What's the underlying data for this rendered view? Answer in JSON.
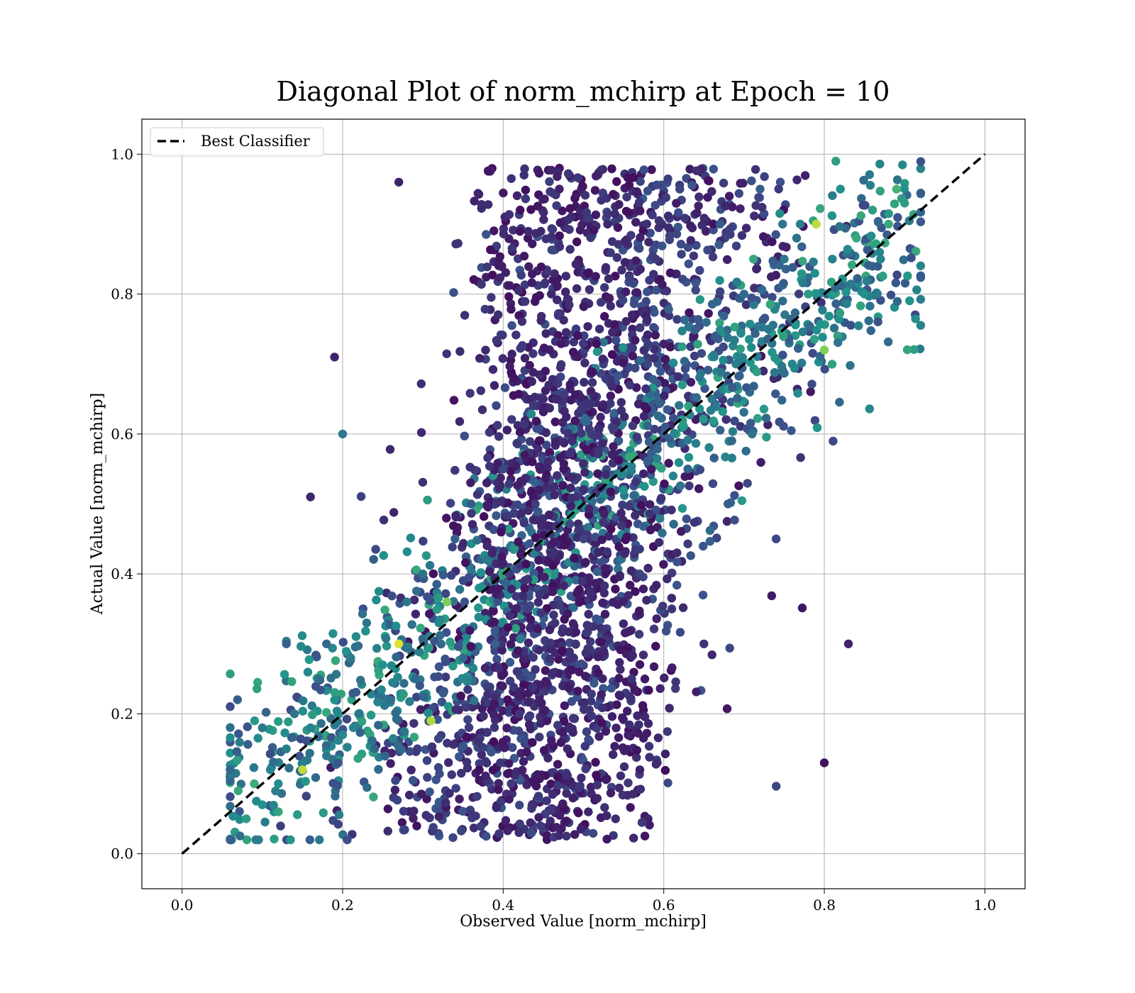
{
  "chart_data": {
    "type": "scatter",
    "title": "Diagonal Plot of norm_mchirp at Epoch = 10",
    "xlabel": "Observed Value [norm_mchirp]",
    "ylabel": "Actual Value [norm_mchirp]",
    "xlim": [
      -0.05,
      1.05
    ],
    "ylim": [
      -0.05,
      1.05
    ],
    "xticks": [
      0.0,
      0.2,
      0.4,
      0.6,
      0.8,
      1.0
    ],
    "yticks": [
      0.0,
      0.2,
      0.4,
      0.6,
      0.8,
      1.0
    ],
    "xtick_labels": [
      "0.0",
      "0.2",
      "0.4",
      "0.6",
      "0.8",
      "1.0"
    ],
    "ytick_labels": [
      "0.0",
      "0.2",
      "0.4",
      "0.6",
      "0.8",
      "1.0"
    ],
    "grid": true,
    "legend": {
      "placement": "top-left",
      "entries": [
        "Best Classifier"
      ]
    },
    "colormap": "viridis",
    "colors": {
      "viridis_low": "#440154",
      "viridis_mid": "#21918c",
      "viridis_high": "#fde725",
      "reference_line": "#000000",
      "grid": "#b0b0b0"
    },
    "reference_line": {
      "name": "Best Classifier",
      "style": "dashed",
      "x": [
        0.0,
        1.0
      ],
      "y": [
        0.0,
        1.0
      ]
    },
    "series": [
      {
        "marker": "circle",
        "points": [
          [
            0.07,
            0.09,
            0.6
          ],
          [
            0.08,
            0.05,
            0.55
          ],
          [
            0.09,
            0.1,
            0.62
          ],
          [
            0.1,
            0.07,
            0.5
          ],
          [
            0.11,
            0.12,
            0.45
          ],
          [
            0.12,
            0.06,
            0.58
          ],
          [
            0.1,
            0.18,
            0.4
          ],
          [
            0.13,
            0.15,
            0.42
          ],
          [
            0.14,
            0.2,
            0.38
          ],
          [
            0.12,
            0.1,
            0.48
          ],
          [
            0.15,
            0.12,
            0.9
          ],
          [
            0.16,
            0.18,
            0.44
          ],
          [
            0.17,
            0.25,
            0.36
          ],
          [
            0.18,
            0.14,
            0.4
          ],
          [
            0.19,
            0.22,
            0.5
          ],
          [
            0.2,
            0.17,
            0.46
          ],
          [
            0.18,
            0.3,
            0.34
          ],
          [
            0.21,
            0.28,
            0.42
          ],
          [
            0.22,
            0.2,
            0.4
          ],
          [
            0.23,
            0.33,
            0.38
          ],
          [
            0.24,
            0.15,
            0.33
          ],
          [
            0.25,
            0.27,
            0.5
          ],
          [
            0.26,
            0.22,
            0.36
          ],
          [
            0.27,
            0.3,
            0.95
          ],
          [
            0.28,
            0.36,
            0.4
          ],
          [
            0.29,
            0.25,
            0.35
          ],
          [
            0.3,
            0.4,
            0.38
          ],
          [
            0.31,
            0.19,
            0.88
          ],
          [
            0.32,
            0.33,
            0.45
          ],
          [
            0.33,
            0.36,
            0.8
          ],
          [
            0.34,
            0.45,
            0.3
          ],
          [
            0.35,
            0.28,
            0.34
          ],
          [
            0.36,
            0.5,
            0.28
          ],
          [
            0.37,
            0.38,
            0.5
          ],
          [
            0.38,
            0.42,
            0.4
          ],
          [
            0.39,
            0.3,
            0.3
          ],
          [
            0.4,
            0.55,
            0.22
          ],
          [
            0.41,
            0.1,
            0.18
          ],
          [
            0.42,
            0.2,
            0.16
          ],
          [
            0.43,
            0.35,
            0.2
          ],
          [
            0.44,
            0.5,
            0.18
          ],
          [
            0.45,
            0.65,
            0.14
          ],
          [
            0.46,
            0.8,
            0.12
          ],
          [
            0.47,
            0.95,
            0.1
          ],
          [
            0.48,
            0.15,
            0.12
          ],
          [
            0.49,
            0.3,
            0.16
          ],
          [
            0.5,
            0.45,
            0.2
          ],
          [
            0.51,
            0.6,
            0.18
          ],
          [
            0.52,
            0.75,
            0.14
          ],
          [
            0.53,
            0.9,
            0.12
          ],
          [
            0.54,
            0.05,
            0.14
          ],
          [
            0.55,
            0.52,
            0.5
          ],
          [
            0.56,
            0.25,
            0.16
          ],
          [
            0.57,
            0.4,
            0.2
          ],
          [
            0.58,
            0.7,
            0.22
          ],
          [
            0.59,
            0.85,
            0.18
          ],
          [
            0.6,
            0.6,
            0.3
          ],
          [
            0.61,
            0.35,
            0.16
          ],
          [
            0.62,
            0.95,
            0.2
          ],
          [
            0.63,
            0.55,
            0.32
          ],
          [
            0.64,
            0.75,
            0.3
          ],
          [
            0.65,
            0.3,
            0.15
          ],
          [
            0.66,
            0.65,
            0.4
          ],
          [
            0.67,
            0.9,
            0.28
          ],
          [
            0.68,
            0.5,
            0.3
          ],
          [
            0.69,
            0.7,
            0.42
          ],
          [
            0.7,
            0.8,
            0.35
          ],
          [
            0.71,
            0.6,
            0.38
          ],
          [
            0.72,
            0.95,
            0.3
          ],
          [
            0.73,
            0.75,
            0.4
          ],
          [
            0.74,
            0.45,
            0.22
          ],
          [
            0.75,
            0.85,
            0.4
          ],
          [
            0.76,
            0.7,
            0.45
          ],
          [
            0.77,
            0.9,
            0.42
          ],
          [
            0.78,
            0.8,
            0.55
          ],
          [
            0.79,
            0.9,
            0.9
          ],
          [
            0.8,
            0.72,
            0.8
          ],
          [
            0.81,
            0.85,
            0.45
          ],
          [
            0.82,
            0.95,
            0.5
          ],
          [
            0.83,
            0.3,
            0.1
          ],
          [
            0.84,
            0.88,
            0.6
          ],
          [
            0.85,
            0.8,
            0.5
          ],
          [
            0.86,
            0.92,
            0.55
          ],
          [
            0.87,
            0.85,
            0.45
          ],
          [
            0.88,
            0.9,
            0.6
          ],
          [
            0.89,
            0.95,
            0.65
          ],
          [
            0.9,
            0.93,
            0.55
          ],
          [
            0.8,
            0.13,
            0.05
          ],
          [
            0.2,
            0.6,
            0.4
          ],
          [
            0.19,
            0.71,
            0.1
          ],
          [
            0.27,
            0.96,
            0.1
          ],
          [
            0.13,
            0.3,
            0.3
          ],
          [
            0.16,
            0.51,
            0.12
          ]
        ]
      }
    ]
  }
}
